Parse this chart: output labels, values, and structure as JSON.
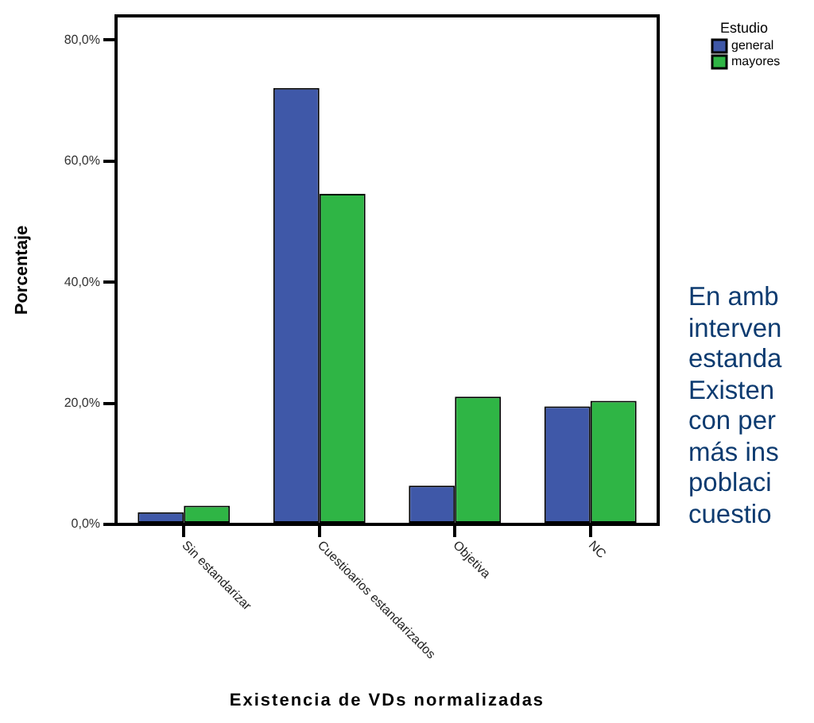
{
  "chart_data": {
    "type": "bar",
    "xlabel": "Existencia de VDs normalizadas",
    "ylabel": "Porcentaje",
    "legend_title": "Estudio",
    "categories": [
      "Sin estandarizar",
      "Cuestioarios estandarizados",
      "Objetiva",
      "NC"
    ],
    "series": [
      {
        "name": "general",
        "color": "#3f58a8",
        "values": [
          2.0,
          72.1,
          6.4,
          19.5
        ]
      },
      {
        "name": "mayores",
        "color": "#2fb545",
        "values": [
          3.1,
          54.6,
          21.1,
          20.4
        ]
      }
    ],
    "ylim": [
      0,
      84
    ],
    "yticks": [
      {
        "value": 0,
        "label": "0,0%"
      },
      {
        "value": 20,
        "label": "20,0%"
      },
      {
        "value": 40,
        "label": "40,0%"
      },
      {
        "value": 60,
        "label": "60,0%"
      },
      {
        "value": 80,
        "label": "80,0%"
      }
    ],
    "grid": false,
    "legend": "top right",
    "annotations": [
      "En amb\ninterven\nestanda\nExisten\ncon per\nmás ins\npoblaci\ncuestio"
    ]
  }
}
